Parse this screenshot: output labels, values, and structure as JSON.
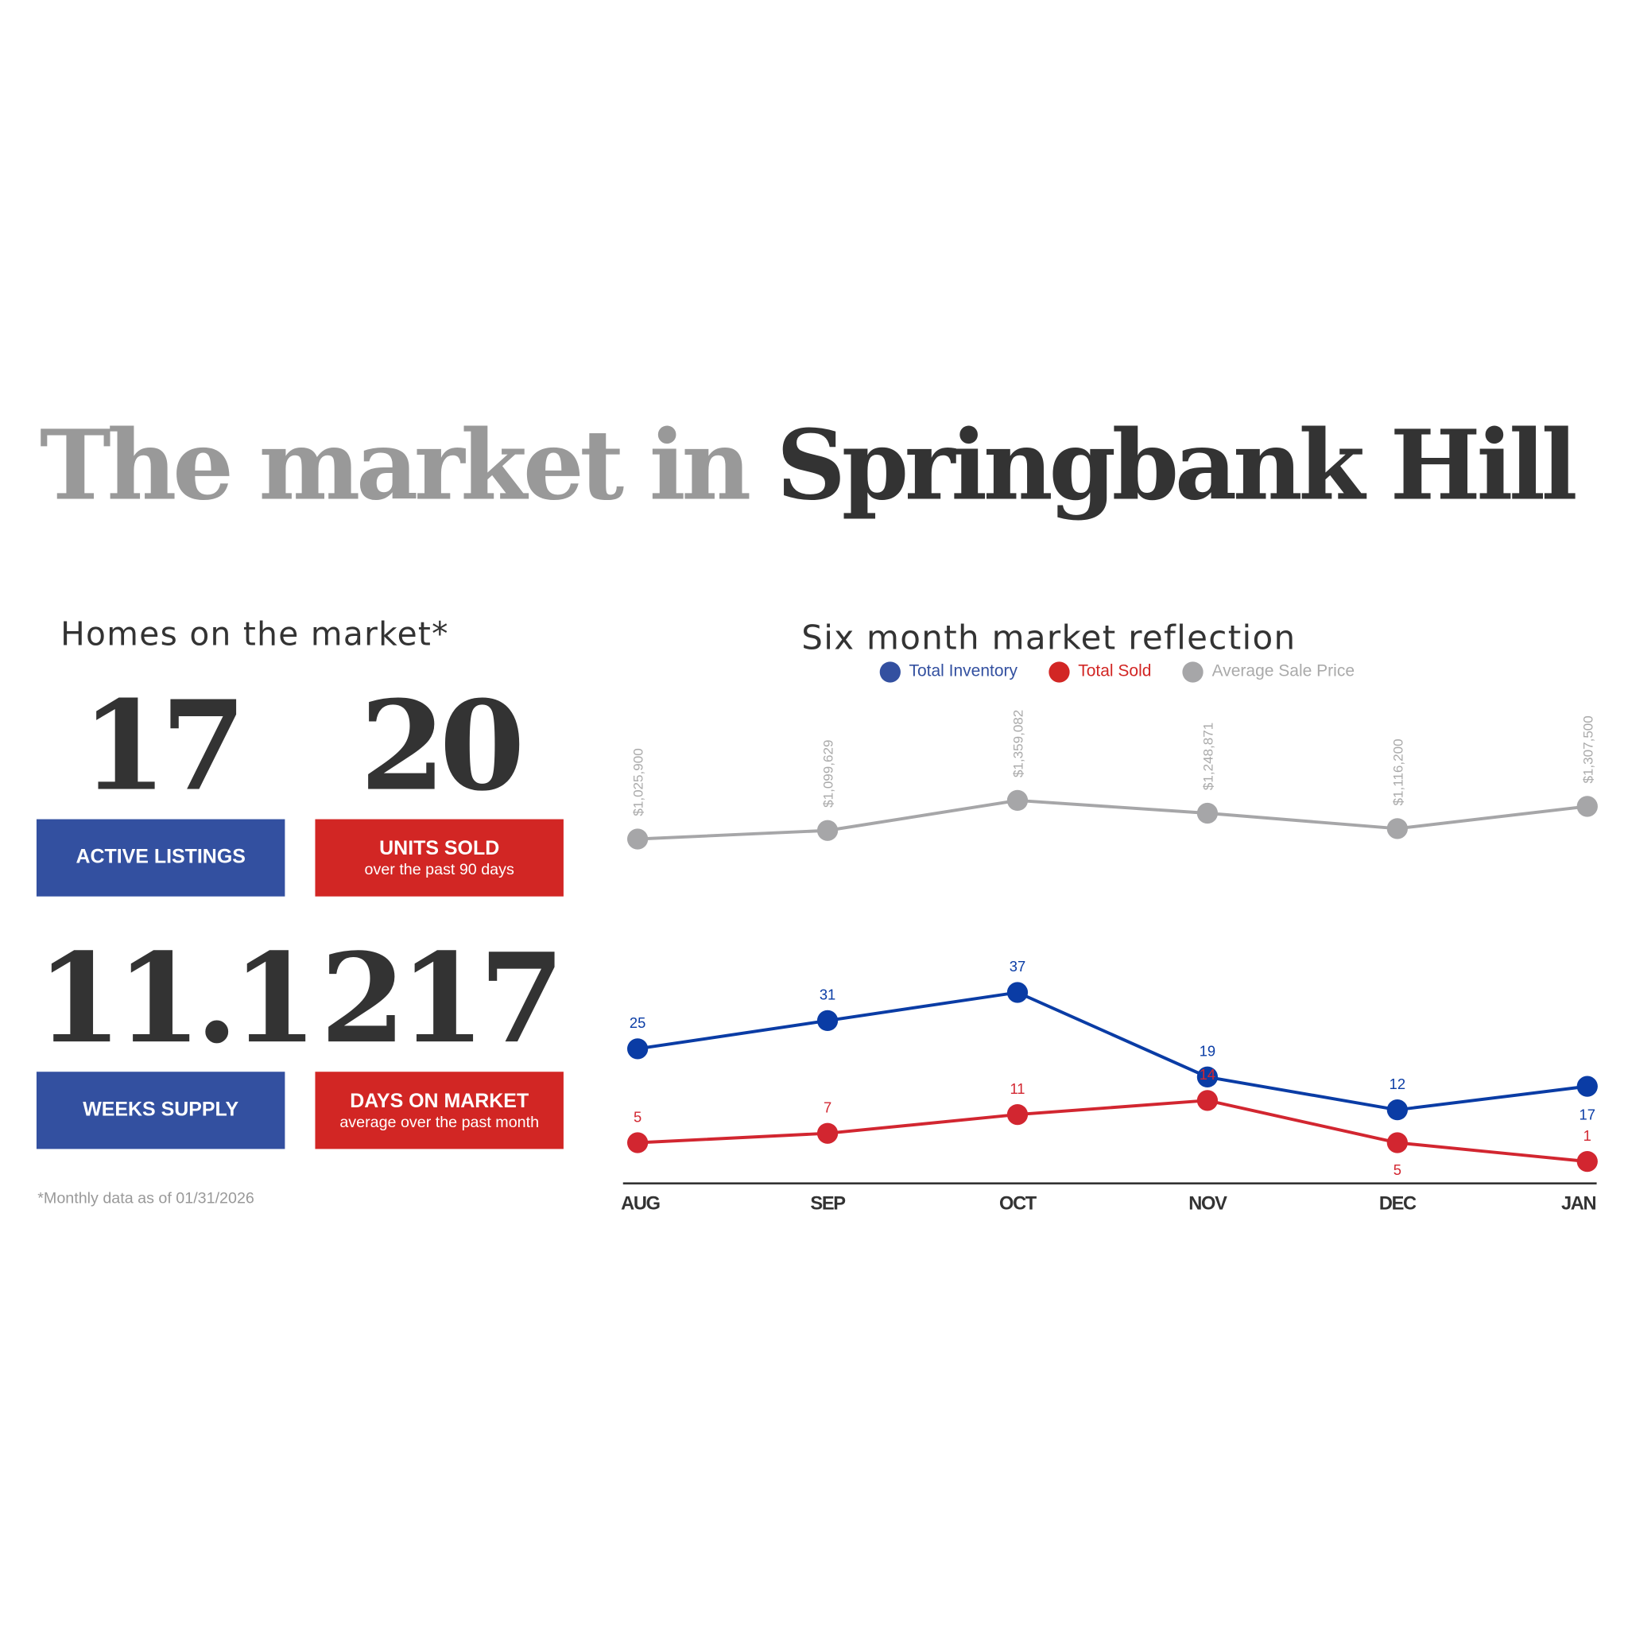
{
  "title": {
    "prefix": "The market in",
    "place": "Springbank Hill"
  },
  "homes": {
    "heading": "Homes on the market*",
    "stats": [
      {
        "value": "17",
        "label": "ACTIVE LISTINGS",
        "sub": "",
        "color": "#3350a0"
      },
      {
        "value": "20",
        "label": "UNITS SOLD",
        "sub": "over the past 90 days",
        "color": "#d22624"
      },
      {
        "value": "11.1",
        "label": "WEEKS SUPPLY",
        "sub": "",
        "color": "#3350a0"
      },
      {
        "value": "217",
        "label": "DAYS ON MARKET",
        "sub": "average over the past month",
        "color": "#d22624"
      }
    ],
    "footnote": "*Monthly data as of 01/31/2026"
  },
  "chart_data": {
    "type": "line",
    "title": "Six month market reflection",
    "categories": [
      "AUG",
      "SEP",
      "OCT",
      "NOV",
      "DEC",
      "JAN"
    ],
    "legend_placement": "top",
    "grid": false,
    "series": [
      {
        "name": "Total Inventory",
        "color": "#0a3ca5",
        "values": [
          25,
          31,
          37,
          19,
          12,
          17
        ]
      },
      {
        "name": "Total Sold",
        "color": "#d22630",
        "values": [
          5,
          7,
          11,
          14,
          5,
          1
        ]
      },
      {
        "name": "Average Sale Price",
        "color": "#a6a6a8",
        "values": [
          1025900,
          1099629,
          1359082,
          1248871,
          1116200,
          1307500
        ],
        "labels": [
          "$1,025,900",
          "$1,099,629",
          "$1,359,082",
          "$1,248,871",
          "$1,116,200",
          "$1,307,500"
        ]
      }
    ]
  }
}
